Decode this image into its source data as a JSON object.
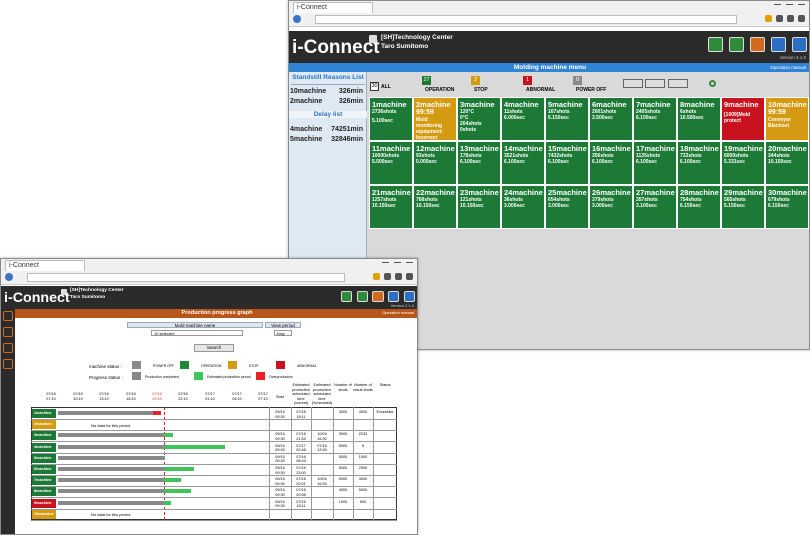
{
  "back_window": {
    "tab": "i-Connect",
    "app_name": "i-Connect",
    "company": "[SH]Technology Center",
    "user": "Taro Sumitomo",
    "menu_title": "Molding machine menu",
    "version": "Version 2.1.0",
    "manual": "Operation manual",
    "standstill": {
      "title": "Standstill Reasons List",
      "rows": [
        [
          "10machine",
          "326min"
        ],
        [
          "2machine",
          "326min"
        ]
      ]
    },
    "delay": {
      "title": "Delay list",
      "rows": [
        [
          "4machine",
          "74251min"
        ],
        [
          "5machine",
          "32846min"
        ]
      ]
    },
    "status_counts": [
      {
        "count": 30,
        "label": "ALL"
      },
      {
        "count": 27,
        "label": "OPERATION"
      },
      {
        "count": 2,
        "label": "STOP"
      },
      {
        "count": 1,
        "label": "ABNORMAL"
      },
      {
        "count": 0,
        "label": "POWER OFF"
      }
    ],
    "machines": [
      {
        "name": "1machine",
        "status": "operation",
        "lines": [
          "2736shots",
          "",
          "5.100sec"
        ]
      },
      {
        "name": "2machine",
        "status": "stop",
        "lines": [
          "99:59",
          "Mold monitoring equipment: Incorrect detection"
        ]
      },
      {
        "name": "3machine",
        "status": "operation",
        "lines": [
          "120°C",
          "0°C",
          "204shots",
          "0shots"
        ]
      },
      {
        "name": "4machine",
        "status": "operation",
        "lines": [
          "11shots",
          "6.000sec"
        ]
      },
      {
        "name": "5machine",
        "status": "operation",
        "lines": [
          "167shots",
          "6.150sec"
        ]
      },
      {
        "name": "6machine",
        "status": "operation",
        "lines": [
          "2001shots",
          "3.500sec"
        ]
      },
      {
        "name": "7machine",
        "status": "operation",
        "lines": [
          "2405shots",
          "6.100sec"
        ]
      },
      {
        "name": "8machine",
        "status": "operation",
        "lines": [
          "6shots",
          "10.500sec"
        ]
      },
      {
        "name": "9machine",
        "status": "abnormal",
        "lines": [
          "",
          "[1009]Mold protect"
        ]
      },
      {
        "name": "10machine",
        "status": "stop",
        "lines": [
          "99:59",
          "Conveyor Blackout"
        ]
      },
      {
        "name": "11machine",
        "status": "operation",
        "lines": [
          "10000shots",
          "5.500sec"
        ]
      },
      {
        "name": "12machine",
        "status": "operation",
        "lines": [
          "93shots",
          "5.000sec"
        ]
      },
      {
        "name": "13machine",
        "status": "operation",
        "lines": [
          "178shots",
          "6.100sec"
        ]
      },
      {
        "name": "14machine",
        "status": "operation",
        "lines": [
          "3521shots",
          "6.100sec"
        ]
      },
      {
        "name": "15machine",
        "status": "operation",
        "lines": [
          "7432shots",
          "6.100sec"
        ]
      },
      {
        "name": "16machine",
        "status": "operation",
        "lines": [
          "356shots",
          "6.100sec"
        ]
      },
      {
        "name": "17machine",
        "status": "operation",
        "lines": [
          "1135shots",
          "6.100sec"
        ]
      },
      {
        "name": "18machine",
        "status": "operation",
        "lines": [
          "733shots",
          "6.100sec"
        ]
      },
      {
        "name": "19machine",
        "status": "operation",
        "lines": [
          "6000shots",
          "5.331sec"
        ]
      },
      {
        "name": "20machine",
        "status": "operation",
        "lines": [
          "344shots",
          "10.150sec"
        ]
      },
      {
        "name": "21machine",
        "status": "operation",
        "lines": [
          "1257shots",
          "10.150sec"
        ]
      },
      {
        "name": "22machine",
        "status": "operation",
        "lines": [
          "768shots",
          "10.150sec"
        ]
      },
      {
        "name": "23machine",
        "status": "operation",
        "lines": [
          "121shots",
          "10.150sec"
        ]
      },
      {
        "name": "24machine",
        "status": "operation",
        "lines": [
          "36shots",
          "3.000sec"
        ]
      },
      {
        "name": "25machine",
        "status": "operation",
        "lines": [
          "654shots",
          "3.000sec"
        ]
      },
      {
        "name": "26machine",
        "status": "operation",
        "lines": [
          "379shots",
          "3.000sec"
        ]
      },
      {
        "name": "27machine",
        "status": "operation",
        "lines": [
          "357shots",
          "3.100sec"
        ]
      },
      {
        "name": "28machine",
        "status": "operation",
        "lines": [
          "754shots",
          "6.150sec"
        ]
      },
      {
        "name": "29machine",
        "status": "operation",
        "lines": [
          "565shots",
          "5.150sec"
        ]
      },
      {
        "name": "30machine",
        "status": "operation",
        "lines": [
          "679shots",
          "6.150sec"
        ]
      }
    ]
  },
  "front_window": {
    "tab": "i-Connect",
    "app_name": "i-Connect",
    "company": "[SH]Technology Center",
    "user": "Taro Sumitomo",
    "version": "Version 2.1.0",
    "page_title": "Production progress graph",
    "manual": "Operation manual",
    "form": {
      "machine_label": "Mold machine name",
      "machine_value": "10 selected",
      "period_label": "View period",
      "period_value": "1day",
      "search": "Search"
    },
    "legend": {
      "machine_status": "machine status :",
      "machine_items": [
        "POWER OFF",
        "OPERATION",
        "STOP",
        "ABNORMAL"
      ],
      "progress_status": "Progress status :",
      "progress_items": [
        "Production completed",
        "Estimated production period",
        "Overproduction"
      ]
    },
    "time_headers": [
      [
        "07/16",
        "07:10"
      ],
      [
        "07/16",
        "10:10"
      ],
      [
        "07/16",
        "13:10"
      ],
      [
        "07/16",
        "16:10"
      ],
      [
        "07/16",
        "19:10"
      ],
      [
        "07/16",
        "22:10"
      ],
      [
        "07/17",
        "01:10"
      ],
      [
        "07/17",
        "04:10"
      ],
      [
        "07/17",
        "07:10"
      ]
    ],
    "columns": [
      "Start",
      "Estimated production scheduled time (current)",
      "Estimated production scheduled time (Scheduled)",
      "Number of shots",
      "Number of result shots",
      "Status"
    ],
    "rows": [
      {
        "name": "1machine",
        "status": "operation",
        "start": "09/15 09:30",
        "current": "07/16 18:11",
        "scheduled": "",
        "shots": 3000,
        "result": 4000,
        "state": "Excessive"
      },
      {
        "name": "2machine",
        "status": "stop",
        "note": "No data for this period"
      },
      {
        "name": "3machine",
        "status": "operation",
        "start": "09/15 09:30",
        "current": "07/16 21:53",
        "scheduled": "10/04 16:30",
        "shots": 3000,
        "result": 2233,
        "state": ""
      },
      {
        "name": "4machine",
        "status": "operation",
        "start": "09/15 09:30",
        "current": "07/17 02:48",
        "scheduled": "07/16 13:30",
        "shots": 5000,
        "result": 5,
        "state": ""
      },
      {
        "name": "5machine",
        "status": "operation",
        "start": "09/15 09:30",
        "current": "07/16 08:43",
        "scheduled": "",
        "shots": 5000,
        "result": 1000,
        "state": ""
      },
      {
        "name": "6machine",
        "status": "operation",
        "start": "09/15 09:30",
        "current": "07/16 23:00",
        "scheduled": "",
        "shots": 5000,
        "result": 2000,
        "state": ""
      },
      {
        "name": "7machine",
        "status": "operation",
        "start": "09/15 09:30",
        "current": "07/16 20:01",
        "scheduled": "10/04 16:30",
        "shots": 5000,
        "result": 3000,
        "state": ""
      },
      {
        "name": "8machine",
        "status": "operation",
        "start": "09/15 09:30",
        "current": "07/16 20:56",
        "scheduled": "",
        "shots": 4000,
        "result": 5000,
        "state": ""
      },
      {
        "name": "9machine",
        "status": "abnormal",
        "start": "09/15 09:30",
        "current": "07/16 18:11",
        "scheduled": "",
        "shots": 1000,
        "result": 500,
        "state": ""
      },
      {
        "name": "10machine",
        "status": "stop",
        "note": "No data for this period"
      }
    ]
  }
}
